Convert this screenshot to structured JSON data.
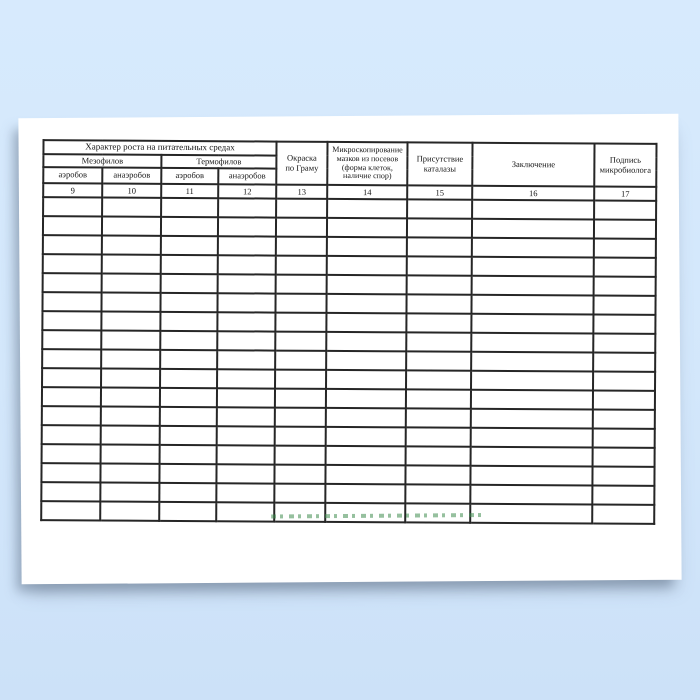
{
  "scene": {
    "background_color": "#d3e7fb",
    "paper_color": "#ffffff",
    "shadow_color": "rgba(104,122,144,0.5)"
  },
  "table": {
    "border_color": "#262626",
    "header": {
      "growth_media_title": "Характер роста на питательных средах",
      "mesophiles_label": "Мезофилов",
      "thermophiles_label": "Термофилов",
      "sub_columns": [
        "аэробов",
        "анаэробов",
        "аэробов",
        "анаэробов"
      ],
      "gram_stain_label": "Окраска\nпо Граму",
      "microscopy_label": "Микроскопирование\nмазков из посевов\n(форма клеток,\nналичие спор)",
      "catalase_label": "Присутствие\nкаталазы",
      "conclusion_label": "Заключение",
      "signature_label": "Подпись\nмикробиолога",
      "column_numbers": [
        "9",
        "10",
        "11",
        "12",
        "13",
        "14",
        "15",
        "16",
        "17"
      ]
    },
    "columns_count": 9,
    "empty_row_count": 17
  },
  "watermark": {
    "color": "#3f8c4f"
  }
}
